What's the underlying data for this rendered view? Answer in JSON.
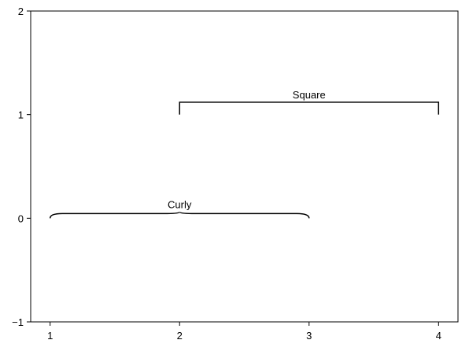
{
  "chart_data": {
    "type": "annotation",
    "title": "",
    "xlabel": "",
    "ylabel": "",
    "xlim": [
      0.85,
      4.15
    ],
    "ylim": [
      -1,
      2
    ],
    "xticks": [
      1,
      2,
      3,
      4
    ],
    "yticks": [
      -1,
      0,
      1,
      2
    ],
    "xtick_labels": [
      "1",
      "2",
      "3",
      "4"
    ],
    "ytick_labels": [
      "−1",
      "0",
      "1",
      "2"
    ],
    "grid": false,
    "colors": {
      "axis": "#000000",
      "annotation": "#000000",
      "background": "#ffffff"
    },
    "annotations": [
      {
        "kind": "curly-brace",
        "label": "Curly",
        "x_start": 1,
        "x_end": 3,
        "y": 0,
        "height": 0.06
      },
      {
        "kind": "square-bracket",
        "label": "Square",
        "x_start": 2,
        "x_end": 4,
        "y": 1,
        "height": 0.12
      }
    ]
  }
}
